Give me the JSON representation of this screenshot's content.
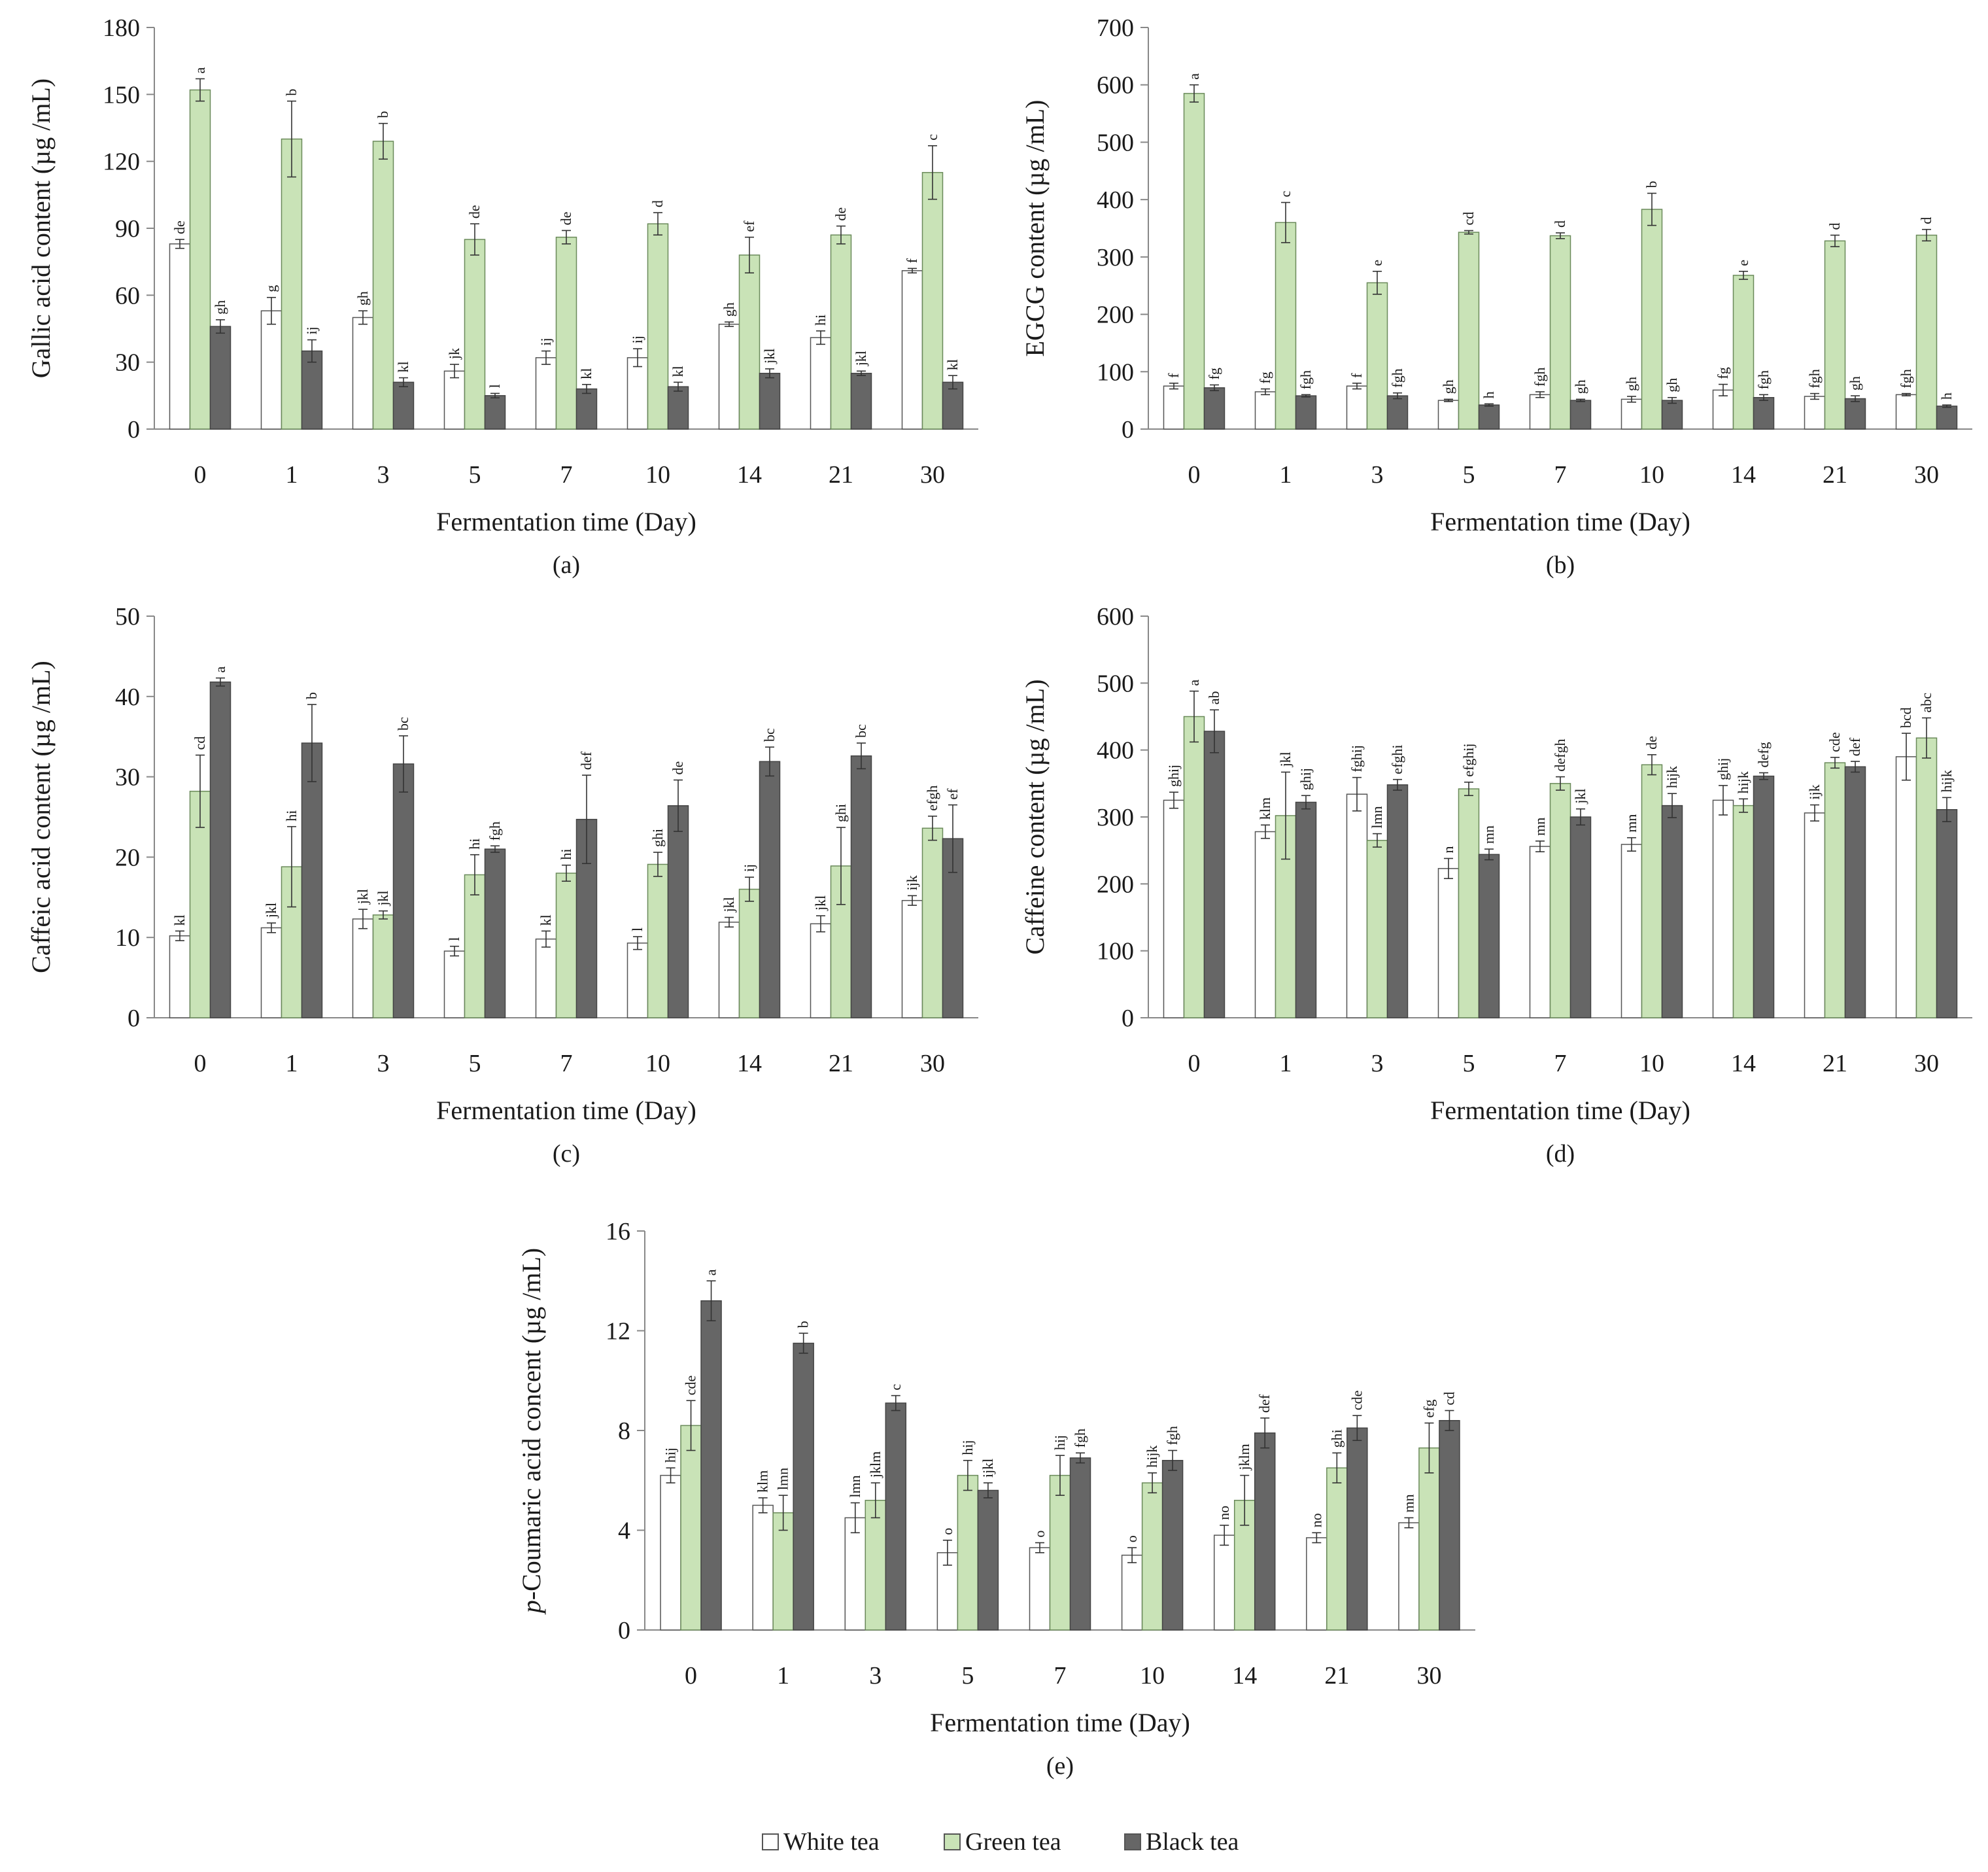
{
  "legend": [
    {
      "label": "White tea",
      "color": "#ffffff"
    },
    {
      "label": "Green tea",
      "color": "#c9e3b7"
    },
    {
      "label": "Black tea",
      "color": "#666666"
    }
  ],
  "chart_data": [
    {
      "type": "bar",
      "panel": "(a)",
      "categories": [
        "0",
        "1",
        "3",
        "5",
        "7",
        "10",
        "14",
        "21",
        "30"
      ],
      "xlabel": "Fermentation time (Day)",
      "ylabel": "Gallic acid content (µg /mL)",
      "ylim": [
        0,
        180
      ],
      "yticks": [
        0,
        30,
        60,
        90,
        120,
        150,
        180
      ],
      "series": [
        {
          "name": "White tea",
          "values": [
            83,
            53,
            50,
            26,
            32,
            32,
            47,
            41,
            71
          ],
          "errors": [
            2,
            6,
            3,
            3,
            3,
            4,
            1,
            3,
            1
          ],
          "letters": [
            "de",
            "g",
            "gh",
            "jk",
            "ij",
            "ij",
            "gh",
            "hi",
            "f"
          ]
        },
        {
          "name": "Green tea",
          "values": [
            152,
            130,
            129,
            85,
            86,
            92,
            78,
            87,
            115
          ],
          "errors": [
            5,
            17,
            8,
            7,
            3,
            5,
            8,
            4,
            12
          ],
          "letters": [
            "a",
            "b",
            "b",
            "de",
            "de",
            "d",
            "ef",
            "de",
            "c"
          ]
        },
        {
          "name": "Black tea",
          "values": [
            46,
            35,
            21,
            15,
            18,
            19,
            25,
            25,
            21
          ],
          "errors": [
            3,
            5,
            2,
            1,
            2,
            2,
            2,
            1,
            3
          ],
          "letters": [
            "gh",
            "ij",
            "kl",
            "l",
            "kl",
            "kl",
            "jkl",
            "jkl",
            "kl"
          ]
        }
      ]
    },
    {
      "type": "bar",
      "panel": "(b)",
      "categories": [
        "0",
        "1",
        "3",
        "5",
        "7",
        "10",
        "14",
        "21",
        "30"
      ],
      "xlabel": "Fermentation time (Day)",
      "ylabel": "EGCG content (µg /mL)",
      "ylim": [
        0,
        700
      ],
      "yticks": [
        0,
        100,
        200,
        300,
        400,
        500,
        600,
        700
      ],
      "series": [
        {
          "name": "White tea",
          "values": [
            75,
            65,
            75,
            50,
            60,
            52,
            68,
            57,
            60
          ],
          "errors": [
            5,
            5,
            5,
            2,
            5,
            5,
            10,
            5,
            2
          ],
          "letters": [
            "f",
            "fg",
            "f",
            "gh",
            "fgh",
            "gh",
            "fg",
            "fgh",
            "fgh"
          ]
        },
        {
          "name": "Green tea",
          "values": [
            585,
            360,
            255,
            343,
            337,
            383,
            268,
            328,
            338
          ],
          "errors": [
            15,
            35,
            20,
            3,
            5,
            28,
            7,
            10,
            10
          ],
          "letters": [
            "a",
            "c",
            "e",
            "cd",
            "d",
            "b",
            "e",
            "d",
            "d"
          ]
        },
        {
          "name": "Black tea",
          "values": [
            72,
            58,
            58,
            42,
            50,
            50,
            55,
            53,
            40
          ],
          "errors": [
            5,
            2,
            5,
            2,
            2,
            5,
            5,
            5,
            2
          ],
          "letters": [
            "fg",
            "fgh",
            "fgh",
            "h",
            "gh",
            "gh",
            "fgh",
            "gh",
            "h"
          ]
        }
      ]
    },
    {
      "type": "bar",
      "panel": "(c)",
      "categories": [
        "0",
        "1",
        "3",
        "5",
        "7",
        "10",
        "14",
        "21",
        "30"
      ],
      "xlabel": "Fermentation time (Day)",
      "ylabel": "Caffeic acid content (µg /mL)",
      "ylim": [
        0,
        50
      ],
      "yticks": [
        0,
        10,
        20,
        30,
        40,
        50
      ],
      "series": [
        {
          "name": "White tea",
          "values": [
            10.2,
            11.2,
            12.3,
            8.3,
            9.8,
            9.3,
            11.9,
            11.7,
            14.6
          ],
          "errors": [
            0.6,
            0.6,
            1.2,
            0.6,
            1.0,
            0.8,
            0.6,
            1.0,
            0.6
          ],
          "letters": [
            "kl",
            "jkl",
            "jkl",
            "l",
            "kl",
            "l",
            "jkl",
            "jkl",
            "ijk"
          ]
        },
        {
          "name": "Green tea",
          "values": [
            28.2,
            18.8,
            12.8,
            17.8,
            18.0,
            19.1,
            16.0,
            18.9,
            23.6
          ],
          "errors": [
            4.5,
            5.0,
            0.5,
            2.5,
            1.0,
            1.5,
            1.5,
            4.8,
            1.5
          ],
          "letters": [
            "cd",
            "hi",
            "jkl",
            "hi",
            "hi",
            "ghi",
            "ij",
            "ghi",
            "efgh"
          ]
        },
        {
          "name": "Black tea",
          "values": [
            41.8,
            34.2,
            31.6,
            21.0,
            24.7,
            26.4,
            31.9,
            32.6,
            22.3
          ],
          "errors": [
            0.5,
            4.8,
            3.5,
            0.4,
            5.5,
            3.2,
            1.8,
            1.6,
            4.2
          ],
          "letters": [
            "a",
            "b",
            "bc",
            "fgh",
            "def",
            "de",
            "bc",
            "bc",
            "ef"
          ]
        }
      ]
    },
    {
      "type": "bar",
      "panel": "(d)",
      "categories": [
        "0",
        "1",
        "3",
        "5",
        "7",
        "10",
        "14",
        "21",
        "30"
      ],
      "xlabel": "Fermentation time (Day)",
      "ylabel": "Caffeine content (µg /mL)",
      "ylim": [
        0,
        600
      ],
      "yticks": [
        0,
        100,
        200,
        300,
        400,
        500,
        600
      ],
      "series": [
        {
          "name": "White tea",
          "values": [
            325,
            278,
            334,
            223,
            256,
            259,
            325,
            306,
            390
          ],
          "errors": [
            12,
            10,
            25,
            15,
            8,
            10,
            22,
            12,
            35
          ],
          "letters": [
            "ghij",
            "klm",
            "fghij",
            "n",
            "mn",
            "mn",
            "ghij",
            "ijk",
            "bcd"
          ]
        },
        {
          "name": "Green tea",
          "values": [
            450,
            302,
            265,
            342,
            350,
            378,
            317,
            381,
            418
          ],
          "errors": [
            38,
            65,
            10,
            10,
            10,
            15,
            10,
            8,
            30
          ],
          "letters": [
            "a",
            "jkl",
            "lmn",
            "efghij",
            "defgh",
            "de",
            "hijk",
            "cde",
            "abc"
          ]
        },
        {
          "name": "Black tea",
          "values": [
            428,
            322,
            348,
            244,
            300,
            317,
            361,
            375,
            311
          ],
          "errors": [
            32,
            10,
            8,
            8,
            12,
            18,
            5,
            8,
            18
          ],
          "letters": [
            "ab",
            "ghij",
            "efghi",
            "mn",
            "jkl",
            "hijk",
            "defg",
            "def",
            "hijk"
          ]
        }
      ]
    },
    {
      "type": "bar",
      "panel": "(e)",
      "categories": [
        "0",
        "1",
        "3",
        "5",
        "7",
        "10",
        "14",
        "21",
        "30"
      ],
      "xlabel": "Fermentation time (Day)",
      "ylabel": "p-Coumaric acid concent (µg /mL)",
      "ylabel_italic": "p",
      "ylabel_rest": "-Coumaric acid concent (µg /mL)",
      "ylim": [
        0,
        16
      ],
      "yticks": [
        0,
        4,
        8,
        12,
        16
      ],
      "series": [
        {
          "name": "White tea",
          "values": [
            6.2,
            5.0,
            4.5,
            3.1,
            3.3,
            3.0,
            3.8,
            3.7,
            4.3
          ],
          "errors": [
            0.3,
            0.3,
            0.6,
            0.5,
            0.2,
            0.3,
            0.4,
            0.2,
            0.2
          ],
          "letters": [
            "hij",
            "klm",
            "lmn",
            "o",
            "o",
            "o",
            "no",
            "no",
            "mn"
          ]
        },
        {
          "name": "Green tea",
          "values": [
            8.2,
            4.7,
            5.2,
            6.2,
            6.2,
            5.9,
            5.2,
            6.5,
            7.3
          ],
          "errors": [
            1.0,
            0.7,
            0.7,
            0.6,
            0.8,
            0.4,
            1.0,
            0.6,
            1.0
          ],
          "letters": [
            "cde",
            "lmn",
            "jklm",
            "hij",
            "hij",
            "hijk",
            "jklm",
            "ghi",
            "efg"
          ]
        },
        {
          "name": "Black tea",
          "values": [
            13.2,
            11.5,
            9.1,
            5.6,
            6.9,
            6.8,
            7.9,
            8.1,
            8.4
          ],
          "errors": [
            0.8,
            0.4,
            0.3,
            0.3,
            0.2,
            0.4,
            0.6,
            0.5,
            0.4
          ],
          "letters": [
            "a",
            "b",
            "c",
            "ijkl",
            "fgh",
            "fgh",
            "def",
            "cde",
            "cd"
          ]
        }
      ]
    }
  ]
}
